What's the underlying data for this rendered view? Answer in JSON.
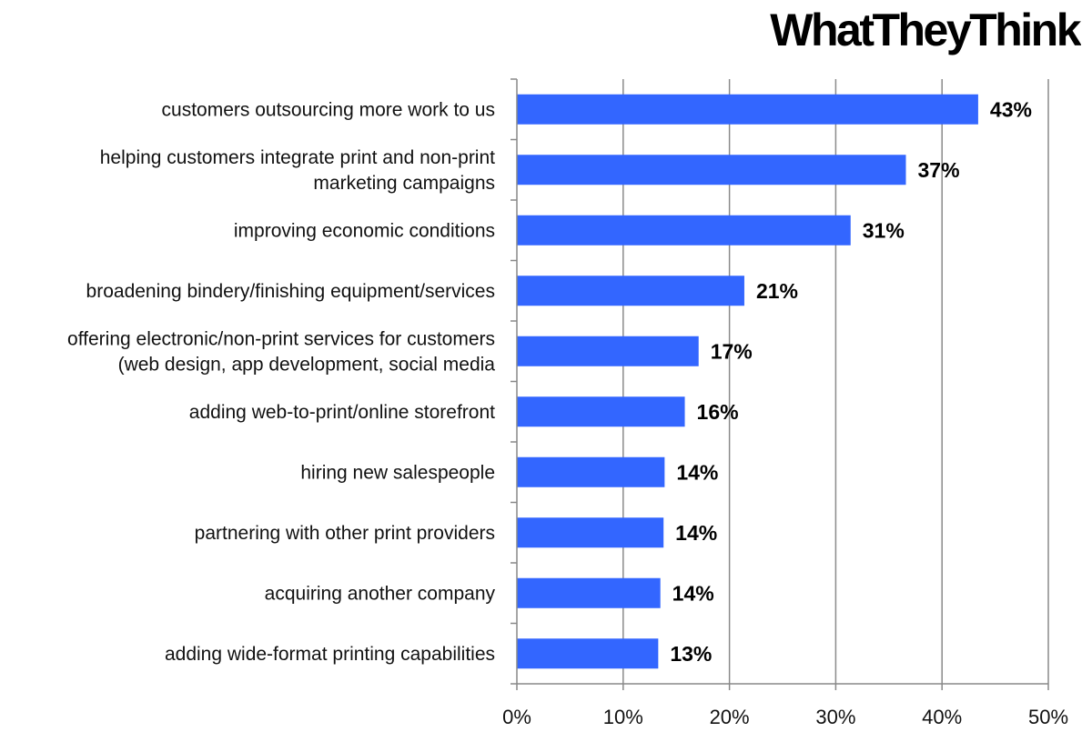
{
  "brand": {
    "logo_text": "WhatTheyThink",
    "logo_accent_color": "#e0282e"
  },
  "chart_data": {
    "type": "bar",
    "orientation": "horizontal",
    "title": "",
    "xlabel": "",
    "ylabel": "",
    "categories": [
      [
        "customers outsourcing more work to us"
      ],
      [
        "helping customers integrate print and non-print",
        "marketing campaigns"
      ],
      [
        "improving economic conditions"
      ],
      [
        "broadening bindery/finishing equipment/services"
      ],
      [
        "offering electronic/non-print services for customers",
        "(web design, app development, social media"
      ],
      [
        "adding web-to-print/online storefront"
      ],
      [
        "hiring new salespeople"
      ],
      [
        "partnering with other print providers"
      ],
      [
        "acquiring another company"
      ],
      [
        "adding wide-format printing capabilities"
      ]
    ],
    "values": [
      43.4,
      36.6,
      31.4,
      21.4,
      17.1,
      15.8,
      13.9,
      13.8,
      13.5,
      13.3
    ],
    "value_labels": [
      "43%",
      "37%",
      "31%",
      "21%",
      "17%",
      "16%",
      "14%",
      "14%",
      "14%",
      "13%"
    ],
    "xlim": [
      0,
      50
    ],
    "xticks": [
      0,
      10,
      20,
      30,
      40,
      50
    ],
    "xtick_labels": [
      "0%",
      "10%",
      "20%",
      "30%",
      "40%",
      "50%"
    ],
    "grid": true,
    "legend": "none",
    "bar_color": "#3366ff",
    "grid_color": "#8a8a8a"
  }
}
